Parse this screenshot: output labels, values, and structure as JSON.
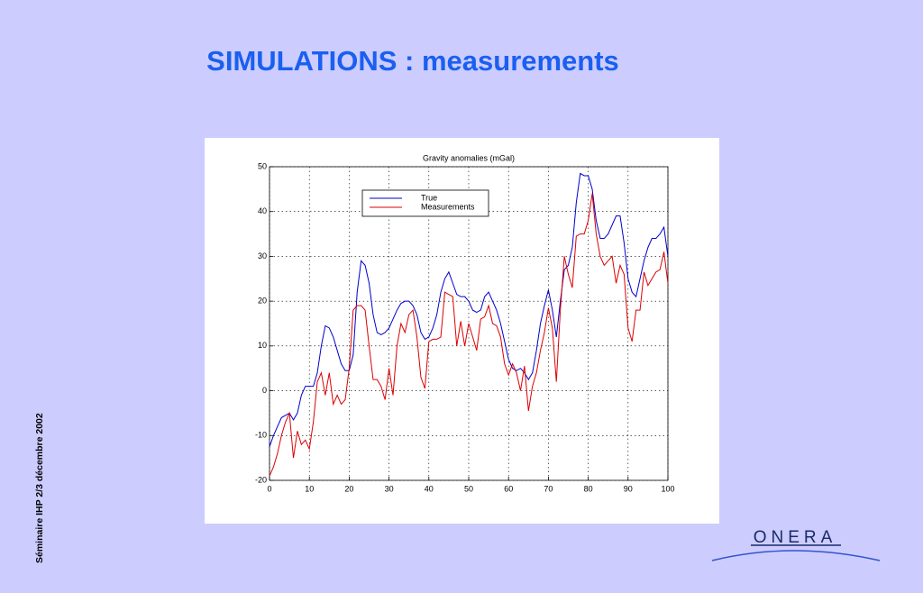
{
  "slide_title": "SIMULATIONS : measurements",
  "footer": "Séminaire IHP  2/3  décembre 2002",
  "logo": "ONERA",
  "chart_data": {
    "type": "line",
    "title": "Gravity anomalies (mGal)",
    "x": [
      0,
      1,
      2,
      3,
      4,
      5,
      6,
      7,
      8,
      9,
      10,
      11,
      12,
      13,
      14,
      15,
      16,
      17,
      18,
      19,
      20,
      21,
      22,
      23,
      24,
      25,
      26,
      27,
      28,
      29,
      30,
      31,
      32,
      33,
      34,
      35,
      36,
      37,
      38,
      39,
      40,
      41,
      42,
      43,
      44,
      45,
      46,
      47,
      48,
      49,
      50,
      51,
      52,
      53,
      54,
      55,
      56,
      57,
      58,
      59,
      60,
      61,
      62,
      63,
      64,
      65,
      66,
      67,
      68,
      69,
      70,
      71,
      72,
      73,
      74,
      75,
      76,
      77,
      78,
      79,
      80,
      81,
      82,
      83,
      84,
      85,
      86,
      87,
      88,
      89,
      90,
      91,
      92,
      93,
      94,
      95,
      96,
      97,
      98,
      99,
      100
    ],
    "series": [
      {
        "name": "True",
        "color": "#0000cc",
        "values": [
          -12.5,
          -10,
          -8,
          -6,
          -5.5,
          -5,
          -6.5,
          -5,
          -1,
          1,
          1,
          1,
          4,
          10,
          14.5,
          14,
          12,
          9,
          6,
          4.5,
          4.5,
          8,
          22,
          29,
          28,
          24,
          17,
          13,
          12.5,
          13,
          14,
          16,
          18,
          19.5,
          20,
          20,
          19,
          17,
          13,
          11.5,
          12,
          14,
          17,
          22,
          25,
          26.5,
          24,
          21.5,
          21,
          21,
          20,
          18,
          17.5,
          18,
          21,
          22,
          20,
          18,
          15,
          11,
          7,
          5,
          4.5,
          5,
          4,
          2.5,
          4,
          9,
          15,
          19,
          22.5,
          18,
          12,
          20,
          27,
          28,
          32,
          42,
          48.5,
          48,
          48,
          45,
          38,
          34,
          34,
          35,
          37,
          39,
          39,
          33,
          25,
          22,
          21,
          25,
          29,
          32,
          34,
          34,
          35,
          36.5,
          30
        ]
      },
      {
        "name": "Measurements",
        "color": "#dd0000",
        "values": [
          -19,
          -17,
          -14,
          -10,
          -7,
          -5,
          -15,
          -9,
          -12,
          -11,
          -13,
          -7,
          2,
          4,
          -1,
          4,
          -3,
          -1,
          -3,
          -2,
          5,
          18,
          19,
          19,
          18,
          10,
          2.5,
          2.5,
          1,
          -2,
          5,
          -1,
          10,
          15,
          13,
          17,
          18,
          12,
          3,
          0.5,
          11,
          11.5,
          11.5,
          12,
          22,
          21.5,
          21,
          10,
          15.5,
          10,
          15,
          12,
          9,
          16,
          16.5,
          19,
          15,
          14.5,
          12,
          6,
          3.5,
          6,
          4,
          0,
          5.5,
          -4.5,
          1,
          4,
          9,
          13,
          18.5,
          14,
          2,
          18,
          30,
          26,
          23,
          34.5,
          35,
          35,
          38,
          44,
          35,
          30,
          28,
          29,
          30,
          24,
          28,
          26,
          14,
          11,
          18,
          18,
          26.5,
          23.5,
          25,
          26.5,
          27,
          31,
          24
        ]
      }
    ],
    "xlim": [
      0,
      100
    ],
    "xticks": [
      0,
      10,
      20,
      30,
      40,
      50,
      60,
      70,
      80,
      90,
      100
    ],
    "ylim": [
      -20,
      50
    ],
    "yticks": [
      -20,
      -10,
      0,
      10,
      20,
      30,
      40,
      50
    ],
    "grid": true,
    "legend": "upper left"
  }
}
